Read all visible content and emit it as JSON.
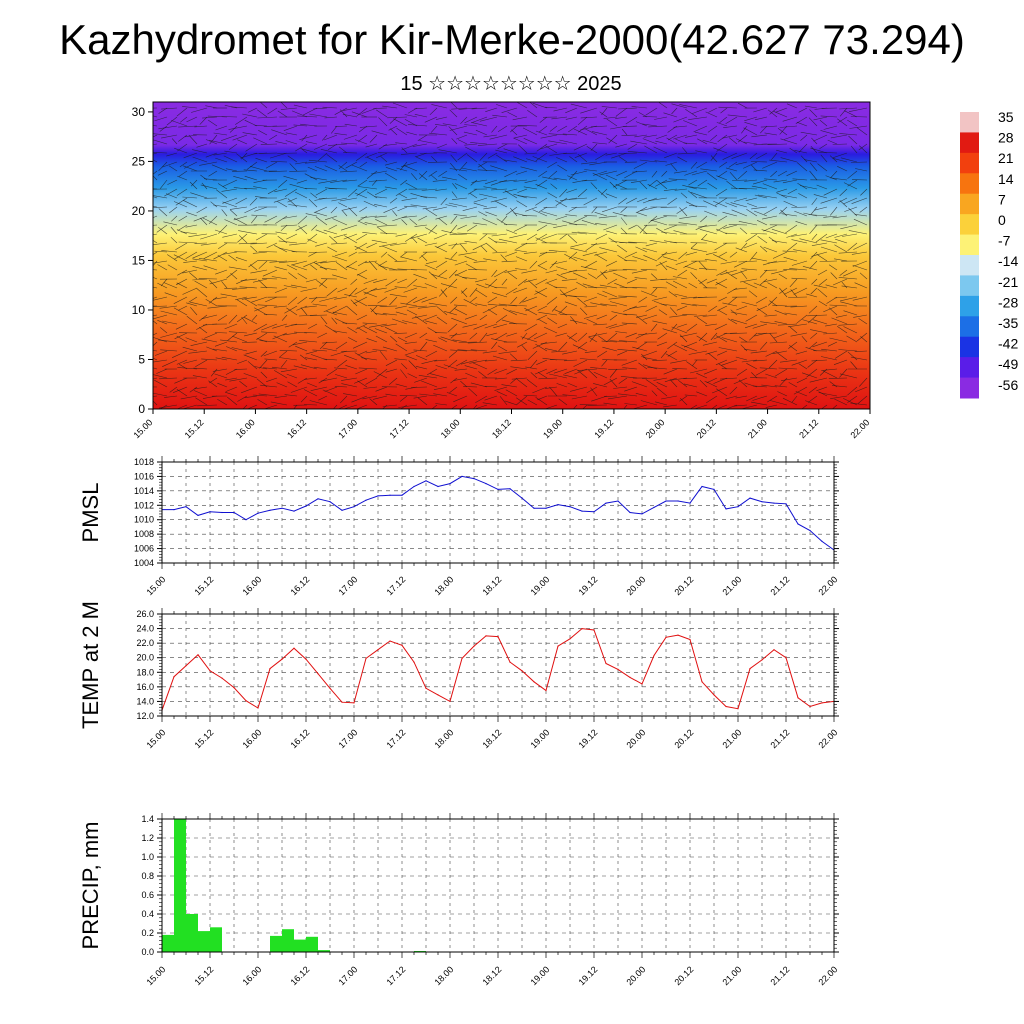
{
  "title": "Kazhydromet for Kir-Merke-2000(42.627 73.294)",
  "subtitle": "15 ☆☆☆☆☆☆☆☆ 2025",
  "time_labels": [
    "15.00",
    "15.12",
    "16.00",
    "16.12",
    "17.00",
    "17.12",
    "18.00",
    "18.12",
    "19.00",
    "19.12",
    "20.00",
    "20.12",
    "21.00",
    "21.12",
    "22.00"
  ],
  "chart_data": [
    {
      "type": "heatmap",
      "name": "cross-section",
      "y_ticks": [
        0,
        5,
        10,
        15,
        20,
        25,
        30
      ],
      "ylim": [
        0,
        31
      ],
      "colorbar": {
        "labels": [
          "35",
          "28",
          "21",
          "14",
          "7",
          "0",
          "-7",
          "-14",
          "-21",
          "-28",
          "-35",
          "-42",
          "-49",
          "-56"
        ],
        "colors": [
          "#f2c4c4",
          "#e11a12",
          "#f2400e",
          "#f7740f",
          "#f9a620",
          "#fbd13a",
          "#fdf276",
          "#cde6f4",
          "#7cc8ef",
          "#2ea1e8",
          "#1c6fe6",
          "#1a33e4",
          "#5a1de8",
          "#8a2be2"
        ]
      }
    },
    {
      "type": "line",
      "name": "pmsl",
      "ylabel": "PMSL",
      "ylim": [
        1004,
        1018
      ],
      "y_ticks": [
        "1004",
        "1006",
        "1008",
        "1010",
        "1012",
        "1014",
        "1016",
        "1018"
      ],
      "color": "#1010d0",
      "x": [
        0,
        3,
        6,
        9,
        12,
        15,
        18,
        21,
        24,
        27,
        30,
        33,
        36,
        39,
        42,
        45,
        48,
        51,
        54,
        57,
        60,
        63,
        66,
        69,
        72,
        75,
        78,
        81,
        84,
        87,
        90,
        93,
        96,
        99,
        102,
        105,
        108,
        111,
        114,
        117,
        120,
        123,
        126,
        129,
        132,
        135,
        138,
        141,
        144,
        147,
        150,
        153,
        156,
        159,
        162,
        165,
        168
      ],
      "values": [
        1011.4,
        1011.4,
        1011.8,
        1010.6,
        1011.1,
        1011.0,
        1011.0,
        1010.0,
        1010.9,
        1011.3,
        1011.6,
        1011.2,
        1011.9,
        1012.9,
        1012.5,
        1011.3,
        1011.8,
        1012.7,
        1013.3,
        1013.4,
        1013.4,
        1014.6,
        1015.4,
        1014.6,
        1015.0,
        1016.0,
        1015.7,
        1015.0,
        1014.2,
        1014.3,
        1013.0,
        1011.6,
        1011.6,
        1012.1,
        1011.8,
        1011.2,
        1011.1,
        1012.3,
        1012.6,
        1011.0,
        1010.8,
        1011.7,
        1012.6,
        1012.6,
        1012.3,
        1014.6,
        1014.2,
        1011.5,
        1011.8,
        1013.0,
        1012.5,
        1012.3,
        1012.2,
        1009.4,
        1008.5,
        1007.0,
        1005.8
      ]
    },
    {
      "type": "line",
      "name": "temp",
      "ylabel": "TEMP at 2 M",
      "ylim": [
        12,
        26
      ],
      "y_ticks": [
        "12.0",
        "14.0",
        "16.0",
        "18.0",
        "20.0",
        "22.0",
        "24.0",
        "26.0"
      ],
      "color": "#e01010",
      "x": [
        0,
        3,
        6,
        9,
        12,
        15,
        18,
        21,
        24,
        27,
        30,
        33,
        36,
        39,
        42,
        45,
        48,
        51,
        54,
        57,
        60,
        63,
        66,
        69,
        72,
        75,
        78,
        81,
        84,
        87,
        90,
        93,
        96,
        99,
        102,
        105,
        108,
        111,
        114,
        117,
        120,
        123,
        126,
        129,
        132,
        135,
        138,
        141,
        144,
        147,
        150,
        153,
        156,
        159,
        162,
        165,
        168
      ],
      "values": [
        12.8,
        17.4,
        18.9,
        20.4,
        18.2,
        17.2,
        15.9,
        14.1,
        13.1,
        18.5,
        19.8,
        21.3,
        19.8,
        17.8,
        15.8,
        13.9,
        13.8,
        19.9,
        21.1,
        22.3,
        21.7,
        19.4,
        15.8,
        14.9,
        14.0,
        19.9,
        21.6,
        23.0,
        22.9,
        19.4,
        18.2,
        16.7,
        15.5,
        21.6,
        22.6,
        24.0,
        23.8,
        19.2,
        18.4,
        17.3,
        16.4,
        20.3,
        22.8,
        23.1,
        22.5,
        16.7,
        14.9,
        13.3,
        13.0,
        18.5,
        19.7,
        21.1,
        20.0,
        14.5,
        13.3,
        13.8,
        14.0
      ]
    },
    {
      "type": "bar",
      "name": "precip",
      "ylabel": "PRECIP, mm",
      "ylim": [
        0,
        1.4
      ],
      "y_ticks": [
        "0.0",
        "0.2",
        "0.4",
        "0.6",
        "0.8",
        "1.0",
        "1.2",
        "1.4"
      ],
      "color": "#22e022",
      "x": [
        0,
        3,
        6,
        9,
        12,
        15,
        18,
        21,
        24,
        27,
        30,
        33,
        36,
        39,
        42,
        45,
        48,
        51,
        54,
        57,
        60,
        63,
        66,
        69,
        72,
        75,
        78,
        81,
        84,
        87,
        90,
        93,
        96,
        99,
        102,
        105,
        108,
        111,
        114,
        117,
        120,
        123,
        126,
        129,
        132,
        135,
        138,
        141,
        144,
        147,
        150,
        153,
        156,
        159,
        162,
        165
      ],
      "values": [
        0.18,
        1.4,
        0.4,
        0.22,
        0.26,
        0,
        0,
        0,
        0,
        0.17,
        0.24,
        0.13,
        0.16,
        0.02,
        0,
        0,
        0,
        0,
        0,
        0,
        0,
        0.01,
        0,
        0,
        0,
        0,
        0,
        0,
        0,
        0,
        0,
        0,
        0,
        0,
        0,
        0,
        0,
        0,
        0,
        0,
        0,
        0,
        0,
        0,
        0,
        0,
        0,
        0,
        0,
        0,
        0,
        0,
        0,
        0,
        0,
        0
      ]
    }
  ]
}
